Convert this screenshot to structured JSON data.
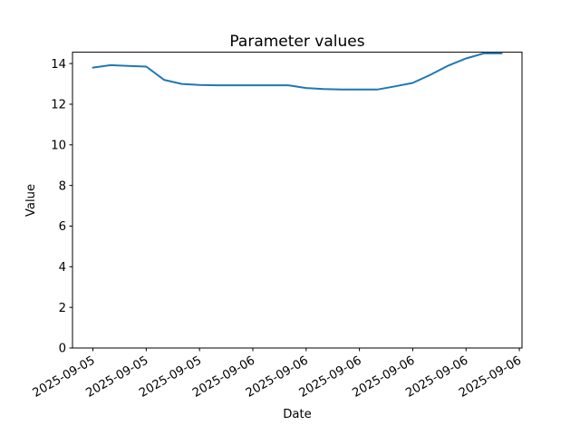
{
  "figure": {
    "title": "Parameter values",
    "xlabel": "Date",
    "ylabel": "Value"
  },
  "chart_data": {
    "type": "line",
    "title": "Parameter values",
    "xlabel": "Date",
    "ylabel": "Value",
    "grid": false,
    "legend": false,
    "line_color": "#1f77b4",
    "axis_color": "#000000",
    "ylim": [
      0,
      14.56
    ],
    "yticks": [
      0,
      2,
      4,
      6,
      8,
      10,
      12,
      14
    ],
    "xlim_hours": [
      -1.15,
      24.15
    ],
    "xticks": [
      {
        "hour": 0,
        "label": "2025-09-05"
      },
      {
        "hour": 3,
        "label": "2025-09-05"
      },
      {
        "hour": 6,
        "label": "2025-09-05"
      },
      {
        "hour": 9,
        "label": "2025-09-06"
      },
      {
        "hour": 12,
        "label": "2025-09-06"
      },
      {
        "hour": 15,
        "label": "2025-09-06"
      },
      {
        "hour": 18,
        "label": "2025-09-06"
      },
      {
        "hour": 21,
        "label": "2025-09-06"
      },
      {
        "hour": 24,
        "label": "2025-09-06"
      }
    ],
    "series": [
      {
        "name": "Parameter values",
        "color": "#1f77b4",
        "points": [
          {
            "t": "2025-09-05 15:00",
            "hour": 0,
            "value": 13.8
          },
          {
            "t": "2025-09-05 16:00",
            "hour": 1,
            "value": 13.92
          },
          {
            "t": "2025-09-05 17:00",
            "hour": 2,
            "value": 13.88
          },
          {
            "t": "2025-09-05 18:00",
            "hour": 3,
            "value": 13.85
          },
          {
            "t": "2025-09-05 19:00",
            "hour": 4,
            "value": 13.2
          },
          {
            "t": "2025-09-05 20:00",
            "hour": 5,
            "value": 13.0
          },
          {
            "t": "2025-09-05 21:00",
            "hour": 6,
            "value": 12.95
          },
          {
            "t": "2025-09-05 22:00",
            "hour": 7,
            "value": 12.93
          },
          {
            "t": "2025-09-05 23:00",
            "hour": 8,
            "value": 12.93
          },
          {
            "t": "2025-09-06 00:00",
            "hour": 9,
            "value": 12.93
          },
          {
            "t": "2025-09-06 01:00",
            "hour": 10,
            "value": 12.93
          },
          {
            "t": "2025-09-06 02:00",
            "hour": 11,
            "value": 12.93
          },
          {
            "t": "2025-09-06 03:00",
            "hour": 12,
            "value": 12.8
          },
          {
            "t": "2025-09-06 04:00",
            "hour": 13,
            "value": 12.75
          },
          {
            "t": "2025-09-06 05:00",
            "hour": 14,
            "value": 12.72
          },
          {
            "t": "2025-09-06 06:00",
            "hour": 15,
            "value": 12.72
          },
          {
            "t": "2025-09-06 07:00",
            "hour": 16,
            "value": 12.72
          },
          {
            "t": "2025-09-06 08:00",
            "hour": 17,
            "value": 12.88
          },
          {
            "t": "2025-09-06 09:00",
            "hour": 18,
            "value": 13.05
          },
          {
            "t": "2025-09-06 10:00",
            "hour": 19,
            "value": 13.45
          },
          {
            "t": "2025-09-06 11:00",
            "hour": 20,
            "value": 13.9
          },
          {
            "t": "2025-09-06 12:00",
            "hour": 21,
            "value": 14.25
          },
          {
            "t": "2025-09-06 13:00",
            "hour": 22,
            "value": 14.5
          },
          {
            "t": "2025-09-06 14:00",
            "hour": 23,
            "value": 14.5
          }
        ]
      }
    ]
  }
}
